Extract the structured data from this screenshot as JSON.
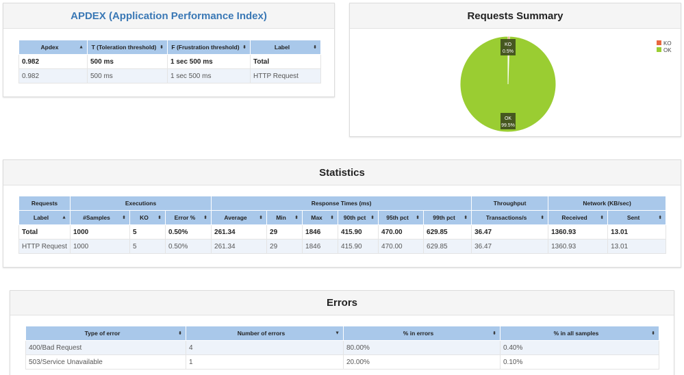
{
  "apdex": {
    "title": "APDEX (Application Performance Index)",
    "headers": [
      "Apdex",
      "T (Toleration threshold)",
      "F (Frustration threshold)",
      "Label"
    ],
    "rows": [
      [
        "0.982",
        "500 ms",
        "1 sec 500 ms",
        "Total"
      ],
      [
        "0.982",
        "500 ms",
        "1 sec 500 ms",
        "HTTP Request"
      ]
    ]
  },
  "summary": {
    "title": "Requests Summary",
    "legend": [
      {
        "label": "KO",
        "color": "#e8673f"
      },
      {
        "label": "OK",
        "color": "#9acd32"
      }
    ],
    "slices": [
      {
        "label": "KO",
        "pct_label": "0.5%",
        "value": 0.5,
        "color": "#e8673f"
      },
      {
        "label": "OK",
        "pct_label": "99.5%",
        "value": 99.5,
        "color": "#9acd32"
      }
    ]
  },
  "stats": {
    "title": "Statistics",
    "groups": [
      "Requests",
      "Executions",
      "Response Times (ms)",
      "Throughput",
      "Network (KB/sec)"
    ],
    "headers": [
      "Label",
      "#Samples",
      "KO",
      "Error %",
      "Average",
      "Min",
      "Max",
      "90th pct",
      "95th pct",
      "99th pct",
      "Transactions/s",
      "Received",
      "Sent"
    ],
    "rows": [
      [
        "Total",
        "1000",
        "5",
        "0.50%",
        "261.34",
        "29",
        "1846",
        "415.90",
        "470.00",
        "629.85",
        "36.47",
        "1360.93",
        "13.01"
      ],
      [
        "HTTP Request",
        "1000",
        "5",
        "0.50%",
        "261.34",
        "29",
        "1846",
        "415.90",
        "470.00",
        "629.85",
        "36.47",
        "1360.93",
        "13.01"
      ]
    ]
  },
  "errors": {
    "title": "Errors",
    "headers": [
      "Type of error",
      "Number of errors",
      "% in errors",
      "% in all samples"
    ],
    "rows": [
      [
        "400/Bad Request",
        "4",
        "80.00%",
        "0.40%"
      ],
      [
        "503/Service Unavailable",
        "1",
        "20.00%",
        "0.10%"
      ]
    ]
  }
}
